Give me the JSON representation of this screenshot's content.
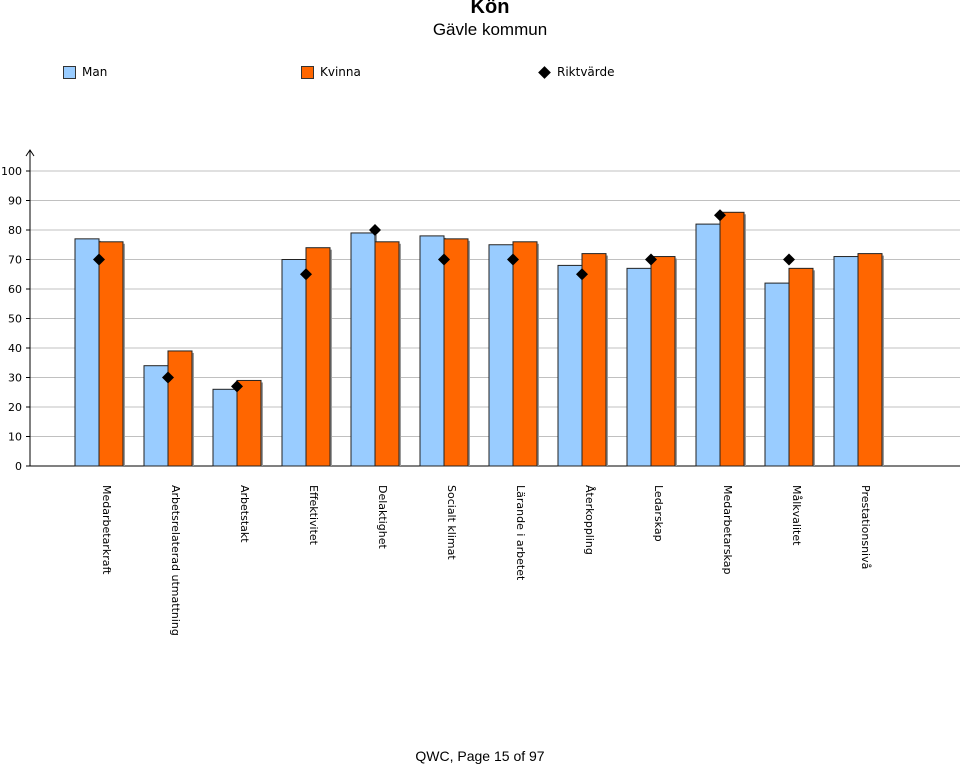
{
  "header": {
    "title": "Kön",
    "subtitle": "Gävle kommun"
  },
  "legend": {
    "man": "Man",
    "kvinna": "Kvinna",
    "riktvarde": "Riktvärde"
  },
  "footer": {
    "text": "QWC, Page 15 of 97"
  },
  "colors": {
    "man": "#99ccff",
    "kvinna": "#ff6600",
    "marker": "#000000",
    "grid": "#c0c0c0"
  },
  "chart_data": {
    "type": "bar",
    "categories": [
      "Medarbetarkraft",
      "Arbetsrelaterad utmattning",
      "Arbetstakt",
      "Effektivitet",
      "Delaktighet",
      "Socialt klimat",
      "Lärande i arbetet",
      "Återkoppling",
      "Ledarskap",
      "Medarbetarskap",
      "Målkvalitet",
      "Prestationsnivå"
    ],
    "series": [
      {
        "name": "Man",
        "values": [
          77,
          34,
          26,
          70,
          79,
          78,
          75,
          68,
          67,
          82,
          62,
          71
        ]
      },
      {
        "name": "Kvinna",
        "values": [
          76,
          39,
          29,
          74,
          76,
          77,
          76,
          72,
          71,
          86,
          67,
          72
        ]
      },
      {
        "name": "Riktvärde",
        "type": "marker",
        "values": [
          70,
          30,
          27,
          65,
          80,
          70,
          70,
          65,
          70,
          85,
          70,
          null
        ]
      }
    ],
    "yticks": [
      "0",
      "10",
      "20",
      "30",
      "40",
      "50",
      "60",
      "70",
      "80",
      "90",
      "100"
    ],
    "ylim": [
      0,
      100
    ],
    "grid": true,
    "legend_position": "top"
  }
}
